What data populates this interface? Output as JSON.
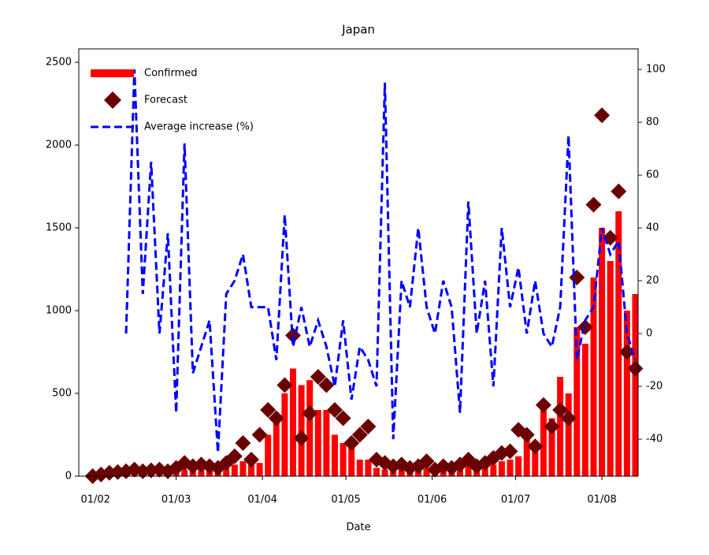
{
  "chart_data": {
    "type": "bar-scatter-line",
    "title": "Japan",
    "xlabel": "Date",
    "x": [
      "31/01",
      "03/02",
      "06/02",
      "09/02",
      "12/02",
      "15/02",
      "18/02",
      "21/02",
      "24/02",
      "27/02",
      "01/03",
      "04/03",
      "07/03",
      "10/03",
      "13/03",
      "16/03",
      "19/03",
      "22/03",
      "25/03",
      "28/03",
      "31/03",
      "03/04",
      "06/04",
      "09/04",
      "12/04",
      "15/04",
      "18/04",
      "21/04",
      "24/04",
      "27/04",
      "30/04",
      "03/05",
      "06/05",
      "09/05",
      "12/05",
      "15/05",
      "18/05",
      "21/05",
      "24/05",
      "27/05",
      "30/05",
      "02/06",
      "05/06",
      "08/06",
      "11/06",
      "14/06",
      "17/06",
      "20/06",
      "23/06",
      "26/06",
      "29/06",
      "02/07",
      "05/07",
      "08/07",
      "11/07",
      "14/07",
      "17/07",
      "20/07",
      "23/07",
      "26/07",
      "29/07",
      "01/08",
      "04/08",
      "07/08",
      "10/08",
      "13/08"
    ],
    "series": [
      {
        "name": "Confirmed",
        "kind": "bar",
        "color": "#ff0000",
        "axis": "y",
        "values": [
          2,
          0,
          5,
          10,
          15,
          20,
          15,
          20,
          25,
          20,
          30,
          40,
          50,
          60,
          50,
          60,
          45,
          70,
          90,
          100,
          80,
          250,
          350,
          500,
          650,
          550,
          580,
          400,
          400,
          250,
          200,
          200,
          100,
          100,
          50,
          40,
          30,
          40,
          35,
          40,
          50,
          40,
          45,
          40,
          50,
          60,
          50,
          60,
          70,
          90,
          100,
          120,
          250,
          200,
          400,
          350,
          600,
          500,
          900,
          800,
          1200,
          1500,
          1300,
          1600,
          1000,
          1100
        ]
      },
      {
        "name": "Forecast",
        "kind": "scatter",
        "color": "#6b0000",
        "axis": "y",
        "values": [
          0,
          10,
          20,
          25,
          30,
          40,
          30,
          35,
          40,
          30,
          50,
          80,
          60,
          70,
          60,
          50,
          80,
          120,
          200,
          100,
          250,
          400,
          350,
          550,
          850,
          230,
          380,
          600,
          550,
          400,
          350,
          200,
          250,
          300,
          100,
          80,
          60,
          70,
          50,
          60,
          90,
          40,
          60,
          50,
          70,
          100,
          60,
          80,
          110,
          140,
          150,
          280,
          250,
          180,
          430,
          300,
          400,
          350,
          1200,
          900,
          1640,
          2180,
          1440,
          1720,
          750,
          650
        ]
      },
      {
        "name": "Average increase (%)",
        "kind": "line",
        "color": "#0000ff",
        "axis": "y2",
        "values": [
          null,
          null,
          null,
          null,
          0,
          100,
          15,
          65,
          0,
          38,
          -30,
          72,
          -15,
          -5,
          5,
          -45,
          15,
          20,
          30,
          10,
          10,
          10,
          -10,
          45,
          -5,
          10,
          -5,
          5,
          -5,
          -20,
          5,
          -25,
          -5,
          -10,
          -20,
          95,
          -40,
          20,
          10,
          40,
          10,
          0,
          20,
          10,
          -30,
          50,
          0,
          20,
          -20,
          40,
          10,
          25,
          0,
          20,
          0,
          -5,
          10,
          75,
          -10,
          5,
          10,
          40,
          30,
          35,
          0,
          -10
        ]
      }
    ],
    "xlim": [
      "26/01",
      "14/08"
    ],
    "xticks": [
      "01/02",
      "01/03",
      "01/04",
      "01/05",
      "01/06",
      "01/07",
      "01/08"
    ],
    "ylim": [
      0,
      2581
    ],
    "yticks": [
      0,
      500,
      1000,
      1500,
      2000,
      2500
    ],
    "y2lim": [
      -54,
      107.8
    ],
    "y2ticks": [
      -40,
      -20,
      0,
      20,
      40,
      60,
      80,
      100
    ],
    "legend": "upper left"
  }
}
